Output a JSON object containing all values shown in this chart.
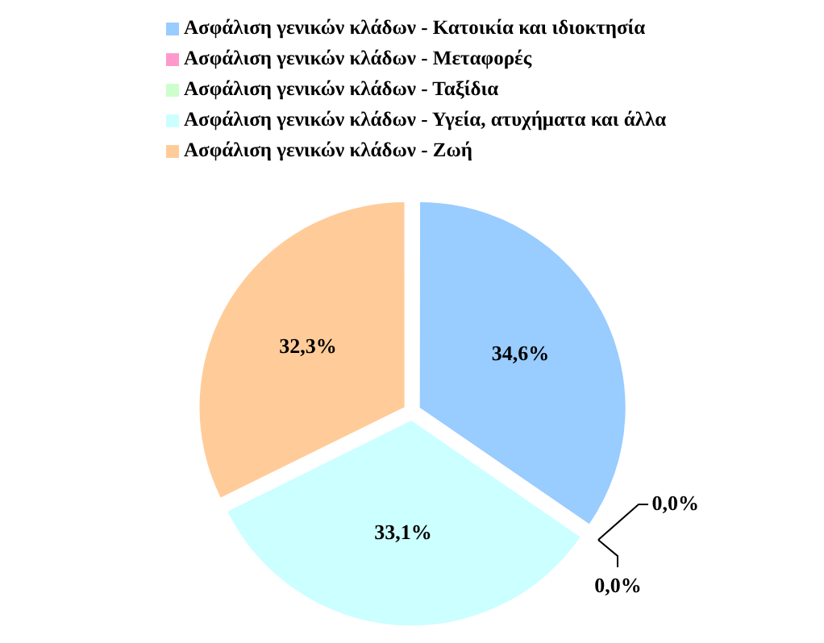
{
  "chart_data": {
    "type": "pie",
    "categories": [
      "Ασφάλιση γενικών κλάδων - Κατοικία και ιδιοκτησία",
      "Ασφάλιση γενικών κλάδων - Μεταφορές",
      "Ασφάλιση γενικών κλάδων - Ταξίδια",
      "Ασφάλιση γενικών κλάδων - Υγεία, ατυχήματα και άλλα",
      "Ασφάλιση γενικών κλάδων - Ζωή"
    ],
    "values": [
      34.6,
      0.0,
      0.0,
      33.1,
      32.3
    ],
    "colors": [
      "#99ccff",
      "#ff99cc",
      "#ccffcc",
      "#ccffff",
      "#ffcc99"
    ],
    "value_labels": [
      "34,6%",
      "0,0%",
      "0,0%",
      "33,1%",
      "32,3%"
    ],
    "legend": "top"
  }
}
